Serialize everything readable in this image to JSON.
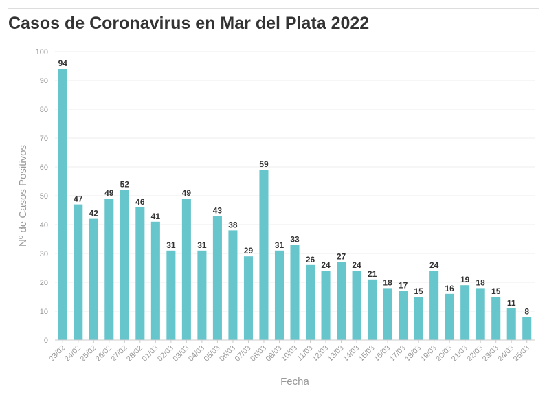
{
  "chart_data": {
    "type": "bar",
    "title": "Casos de Coronavirus en Mar del Plata 2022",
    "xlabel": "Fecha",
    "ylabel": "Nº de Casos Positivos",
    "ylim": [
      0,
      100
    ],
    "yticks": [
      0,
      10,
      20,
      30,
      40,
      50,
      60,
      70,
      80,
      90,
      100
    ],
    "grid": true,
    "bar_color": "#67c5cc",
    "categories": [
      "23/02",
      "24/02",
      "25/02",
      "26/02",
      "27/02",
      "28/02",
      "01/03",
      "02/03",
      "03/03",
      "04/03",
      "05/03",
      "06/03",
      "07/03",
      "08/03",
      "09/03",
      "10/03",
      "11/03",
      "12/03",
      "13/03",
      "14/03",
      "15/03",
      "16/03",
      "17/03",
      "18/03",
      "19/03",
      "20/03",
      "21/03",
      "22/03",
      "23/03",
      "24/03",
      "25/03"
    ],
    "values": [
      94,
      47,
      42,
      49,
      52,
      46,
      41,
      31,
      49,
      31,
      43,
      38,
      29,
      59,
      31,
      33,
      26,
      24,
      27,
      24,
      21,
      18,
      17,
      15,
      24,
      16,
      19,
      18,
      15,
      11,
      8
    ]
  }
}
